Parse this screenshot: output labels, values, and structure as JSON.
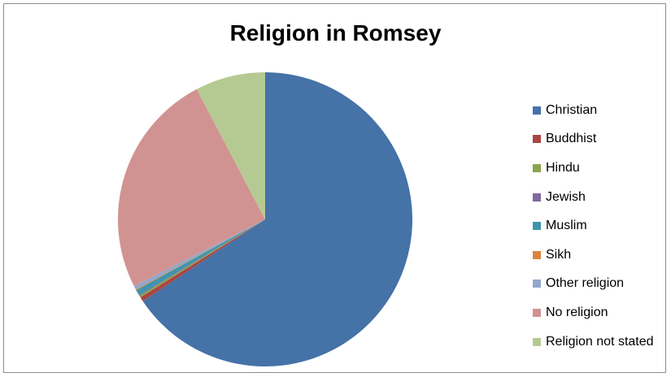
{
  "chart_data": {
    "type": "pie",
    "title": "Religion in Romsey",
    "legend_position": "right",
    "categories": [
      "Christian",
      "Buddhist",
      "Hindu",
      "Jewish",
      "Muslim",
      "Sikh",
      "Other religion",
      "No religion",
      "Religion not stated"
    ],
    "values": [
      65.6,
      0.5,
      0.2,
      0.1,
      0.6,
      0.1,
      0.4,
      24.8,
      7.7
    ],
    "colors": [
      "#4572A7",
      "#AA4643",
      "#89A54E",
      "#80699B",
      "#3D96AE",
      "#DB843D",
      "#92A8CD",
      "#D19392",
      "#B5CA92"
    ]
  }
}
